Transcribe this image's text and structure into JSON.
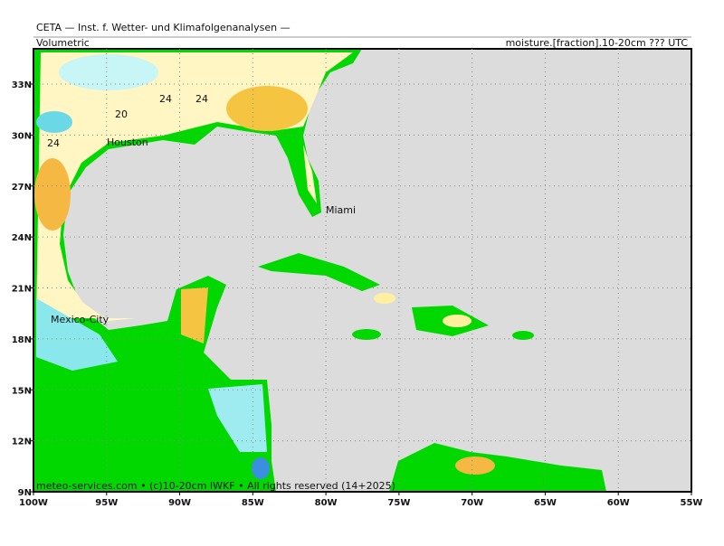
{
  "header": {
    "source": "CETA — Inst. f. Wetter- und Klimafolgenanalysen —",
    "left_label": "Volumetric",
    "right_label": "moisture.[fraction].10-20cm ??? UTC"
  },
  "map": {
    "lon_ticks": [
      {
        "value": -100,
        "label": "100W"
      },
      {
        "value": -95,
        "label": "95W"
      },
      {
        "value": -90,
        "label": "90W"
      },
      {
        "value": -85,
        "label": "85W"
      },
      {
        "value": -80,
        "label": "80W"
      },
      {
        "value": -75,
        "label": "75W"
      },
      {
        "value": -70,
        "label": "70W"
      },
      {
        "value": -65,
        "label": "65W"
      },
      {
        "value": -60,
        "label": "60W"
      },
      {
        "value": -55,
        "label": "55W"
      }
    ],
    "lat_ticks": [
      {
        "value": 9,
        "label": "9N"
      },
      {
        "value": 12,
        "label": "12N"
      },
      {
        "value": 15,
        "label": "15N"
      },
      {
        "value": 18,
        "label": "18N"
      },
      {
        "value": 21,
        "label": "21N"
      },
      {
        "value": 24,
        "label": "24N"
      },
      {
        "value": 27,
        "label": "27N"
      },
      {
        "value": 30,
        "label": "30N"
      },
      {
        "value": 33,
        "label": "33N"
      }
    ],
    "cities": [
      "Houston",
      "Miami",
      "Mexico-City"
    ],
    "contour_labels": [
      "24",
      "20",
      "24",
      "24"
    ]
  },
  "footer": "meteo-services.com • (c)10-20cm IWKF • All rights reserved (14+2025)"
}
